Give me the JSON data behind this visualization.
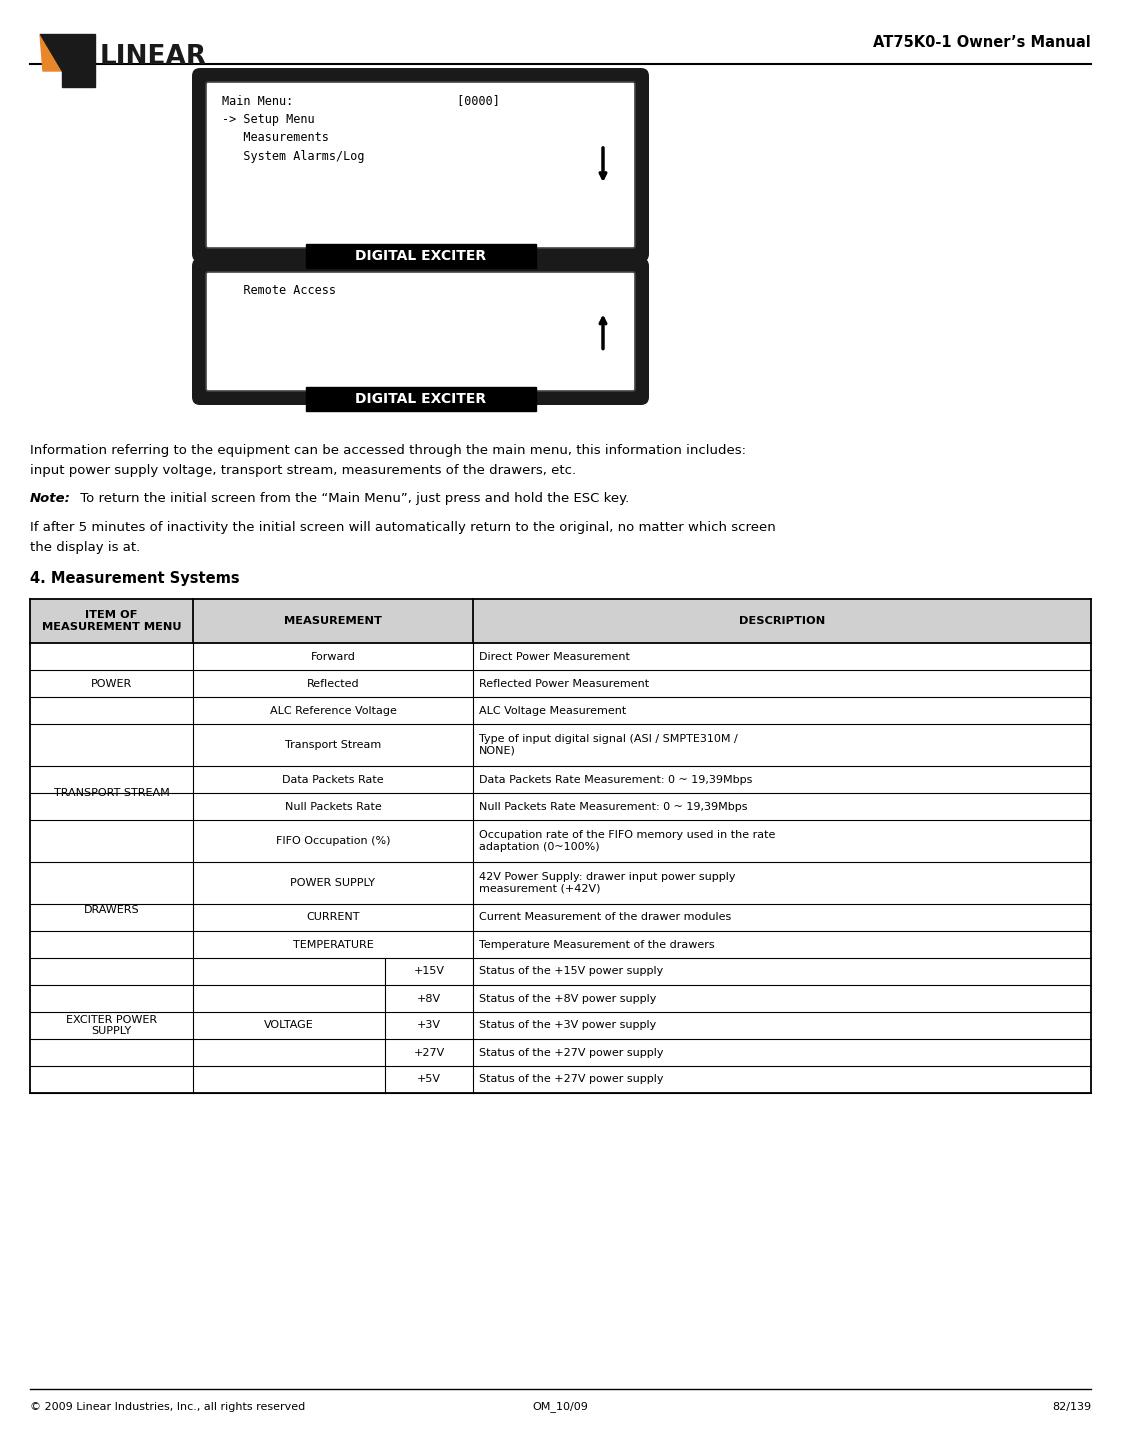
{
  "title": "AT75K0-1 Owner’s Manual",
  "footer_left": "© 2009 Linear Industries, Inc., all rights reserved",
  "footer_center": "OM_10/09",
  "footer_right": "82/139",
  "screen1_label": "DIGITAL EXCITER",
  "screen2_label": "DIGITAL EXCITER",
  "para1_line1": "Information referring to the equipment can be accessed through the main menu, this information includes:",
  "para1_line2": "input power supply voltage, transport stream, measurements of the drawers, etc.",
  "note_bold": "Note:",
  "note_rest": " To return the initial screen from the “Main Menu”, just press and hold the ESC key.",
  "para2_line1": "If after 5 minutes of inactivity the initial screen will automatically return to the original, no matter which screen",
  "para2_line2": "the display is at.",
  "section_title": "4. Measurement Systems",
  "bg_color": "#ffffff",
  "hdr_bg": "#d0d0d0"
}
